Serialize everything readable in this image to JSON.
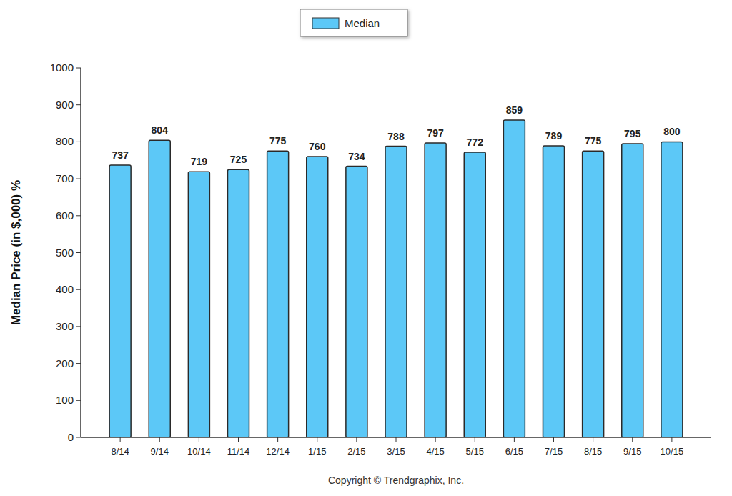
{
  "chart_data": {
    "type": "bar",
    "y_label": "Median Price (in $,000) %",
    "annotations": [
      "Copyright © Trendgraphix, Inc."
    ],
    "categories": [
      "8/14",
      "9/14",
      "10/14",
      "11/14",
      "12/14",
      "1/15",
      "2/15",
      "3/15",
      "4/15",
      "5/15",
      "6/15",
      "7/15",
      "8/15",
      "9/15",
      "10/15"
    ],
    "series": [
      {
        "name": "Median",
        "color": "#5cc8f7",
        "values": [
          737,
          804,
          719,
          725,
          775,
          760,
          734,
          788,
          797,
          772,
          859,
          789,
          775,
          795,
          800
        ]
      }
    ],
    "ylim": [
      0,
      1000
    ],
    "yticks": [
      0,
      100,
      200,
      300,
      400,
      500,
      600,
      700,
      800,
      900,
      1000
    ],
    "grid": false,
    "legend": "top",
    "data_labels": true
  }
}
